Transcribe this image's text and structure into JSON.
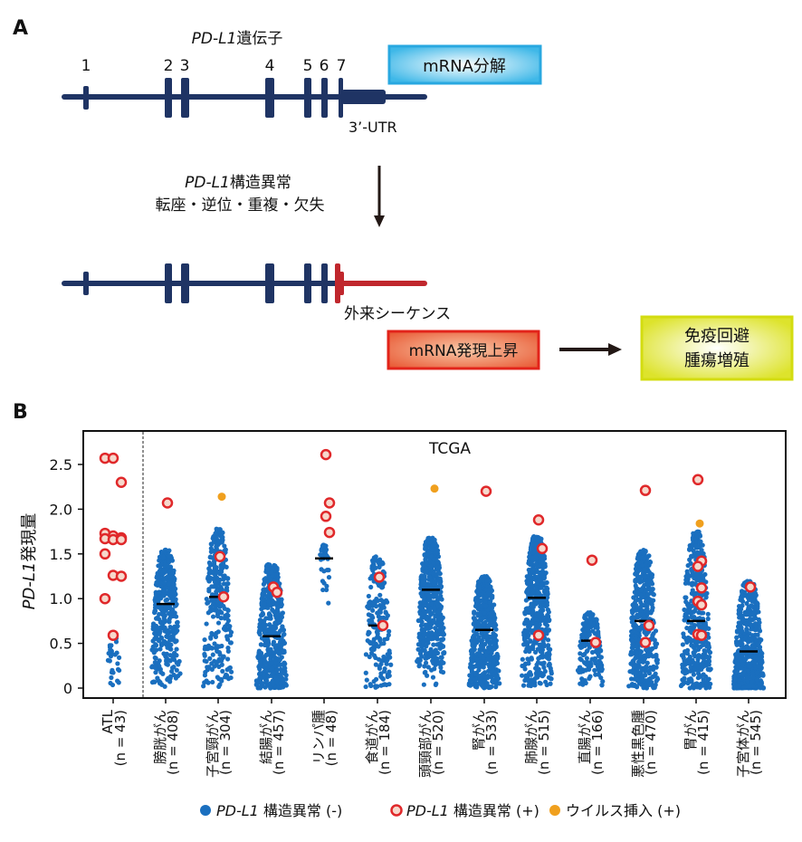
{
  "panel_a": {
    "label": "A",
    "gene_title_italic": "PD-L1",
    "gene_title_rest": "遺伝子",
    "exon_numbers": [
      "1",
      "2",
      "3",
      "4",
      "5",
      "6",
      "7"
    ],
    "utr_label": "3’-UTR",
    "decay_box": "mRNA分解",
    "sv_title_italic": "PD-L1",
    "sv_title_rest": "構造異常",
    "sv_types": "転座・逆位・重複・欠失",
    "foreign_seq": "外来シーケンス",
    "upregulation_box": "mRNA発現上昇",
    "outcome_line1": "免疫回避",
    "outcome_line2": "腫瘍増殖",
    "colors": {
      "gene": "#1f3464",
      "foreign": "#c0272d",
      "decay_box": "#3fb8e8",
      "up_box": "#e8542f",
      "outcome_box": "#d8e02a"
    }
  },
  "panel_b": {
    "label": "B",
    "cohort_label": "TCGA",
    "ylabel_italic": "PD-L1",
    "ylabel_rest": "発現量",
    "legend": [
      {
        "italic": "PD-L1",
        "text": " 構造異常 (-)",
        "color": "#1a6fbf",
        "style": "filled"
      },
      {
        "italic": "PD-L1",
        "text": " 構造異常 (+)",
        "color": "#e0282a",
        "style": "open"
      },
      {
        "italic": "",
        "text": "ウイルス挿入 (+)",
        "color": "#f0a01e",
        "style": "filled"
      }
    ]
  },
  "chart_data": {
    "type": "scatter",
    "ylim": [
      -0.05,
      2.75
    ],
    "yticks": [
      "0",
      "0.5",
      "1.0",
      "1.5",
      "2.0",
      "2.5"
    ],
    "ytick_values": [
      0,
      0.5,
      1.0,
      1.5,
      2.0,
      2.5
    ],
    "grid": false,
    "legend_position": "bottom",
    "groups": [
      {
        "name": "ATL",
        "n_text": "(n = 43)",
        "median": null,
        "sv_negative_max": 0.62,
        "sv_positive": [
          2.57,
          2.57,
          2.3,
          1.73,
          1.7,
          1.68,
          1.67,
          1.66,
          1.66,
          1.5,
          1.26,
          1.25,
          1.0,
          0.59
        ],
        "viral": []
      },
      {
        "name": "膀胱がん",
        "n_text": "(n = 408)",
        "median": 0.94,
        "sv_negative_max": 1.55,
        "sv_positive": [
          2.07
        ],
        "viral": []
      },
      {
        "name": "子宮頸がん",
        "n_text": "(n = 304)",
        "median": 1.02,
        "sv_negative_max": 1.78,
        "sv_positive": [
          1.47,
          1.02
        ],
        "viral": [
          2.14
        ]
      },
      {
        "name": "結腸がん",
        "n_text": "(n = 457)",
        "median": 0.58,
        "sv_negative_max": 1.4,
        "sv_positive": [
          1.13,
          1.07
        ],
        "viral": []
      },
      {
        "name": "リンパ腫",
        "n_text": "(n = 48)",
        "median": 1.45,
        "sv_negative_max": 1.6,
        "sv_positive": [
          2.61,
          2.07,
          1.92,
          1.74
        ],
        "viral": []
      },
      {
        "name": "食道がん",
        "n_text": "(n = 184)",
        "median": 0.7,
        "sv_negative_max": 1.47,
        "sv_positive": [
          1.24,
          0.7
        ],
        "viral": []
      },
      {
        "name": "頭頸部がん",
        "n_text": "(n = 520)",
        "median": 1.1,
        "sv_negative_max": 1.68,
        "sv_positive": [],
        "viral": [
          2.23
        ]
      },
      {
        "name": "腎がん",
        "n_text": "(n = 533)",
        "median": 0.65,
        "sv_negative_max": 1.25,
        "sv_positive": [
          2.2
        ],
        "viral": []
      },
      {
        "name": "肺腺がん",
        "n_text": "(n = 515)",
        "median": 1.01,
        "sv_negative_max": 1.7,
        "sv_positive": [
          1.88,
          1.56,
          0.59
        ],
        "viral": []
      },
      {
        "name": "直腸がん",
        "n_text": "(n = 166)",
        "median": 0.53,
        "sv_negative_max": 0.85,
        "sv_positive": [
          1.43,
          0.51
        ],
        "viral": []
      },
      {
        "name": "悪性黒色腫",
        "n_text": "(n = 470)",
        "median": 0.75,
        "sv_negative_max": 1.55,
        "sv_positive": [
          2.21,
          0.7,
          0.51
        ],
        "viral": []
      },
      {
        "name": "胃がん",
        "n_text": "(n = 415)",
        "median": 0.75,
        "sv_negative_max": 1.75,
        "sv_positive": [
          2.33,
          1.42,
          1.36,
          1.12,
          0.97,
          0.93,
          0.6,
          0.59
        ],
        "viral": [
          1.84
        ]
      },
      {
        "name": "子宮体がん",
        "n_text": "(n = 545)",
        "median": 0.41,
        "sv_negative_max": 1.2,
        "sv_positive": [
          1.13
        ],
        "viral": []
      }
    ]
  }
}
